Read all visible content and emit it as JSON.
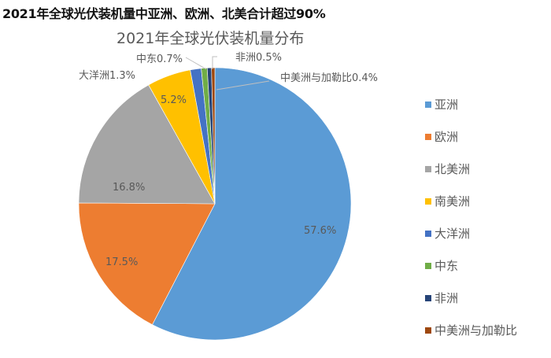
{
  "headline": "2021年全球光伏装机量中亚洲、欧洲、北美合计超过90%",
  "chart_data": {
    "type": "pie",
    "title": "2021年全球光伏装机量分布",
    "start_angle_deg": 0,
    "direction": "clockwise",
    "categories": [
      "亚洲",
      "欧洲",
      "北美洲",
      "南美洲",
      "大洋洲",
      "中东",
      "非洲",
      "中美洲与加勒比"
    ],
    "values": [
      57.6,
      17.5,
      16.8,
      5.2,
      1.3,
      0.7,
      0.5,
      0.4
    ],
    "unit": "%",
    "colors": [
      "#5b9bd5",
      "#ed7d31",
      "#a5a5a5",
      "#ffc000",
      "#4472c4",
      "#70ad47",
      "#264478",
      "#9e480e"
    ],
    "data_labels": [
      "57.6%",
      "17.5%",
      "16.8%",
      "5.2%",
      "大洋洲1.3%",
      "中东0.7%",
      "非洲0.5%",
      "中美洲与加勒比0.4%"
    ],
    "legend_position": "right"
  },
  "legend": {
    "items": [
      {
        "label": "亚洲",
        "color": "#5b9bd5"
      },
      {
        "label": "欧洲",
        "color": "#ed7d31"
      },
      {
        "label": "北美洲",
        "color": "#a5a5a5"
      },
      {
        "label": "南美洲",
        "color": "#ffc000"
      },
      {
        "label": "大洋洲",
        "color": "#4472c4"
      },
      {
        "label": "中东",
        "color": "#70ad47"
      },
      {
        "label": "非洲",
        "color": "#264478"
      },
      {
        "label": "中美洲与加勒比",
        "color": "#9e480e"
      }
    ]
  }
}
